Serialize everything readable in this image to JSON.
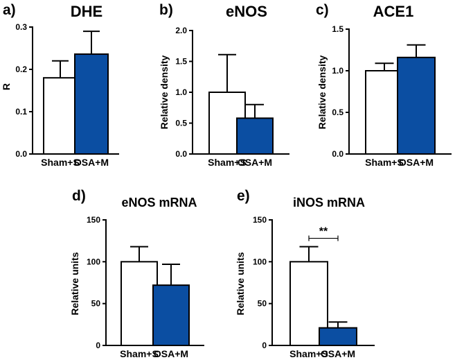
{
  "colors": {
    "filled": "#0b4ea2",
    "open": "#ffffff",
    "stroke": "#000000"
  },
  "chart_data": [
    {
      "type": "bar",
      "panel": "a)",
      "title": "DHE",
      "ylabel": "R",
      "categories": [
        "Sham+S",
        "OSA+M"
      ],
      "values": [
        0.18,
        0.236
      ],
      "errors": [
        0.04,
        0.054
      ],
      "fill": [
        "open",
        "filled"
      ],
      "ylim": [
        0,
        0.3
      ],
      "yticks": [
        0.0,
        0.1,
        0.2,
        0.3
      ],
      "ytick_labels": [
        "0.0",
        "0.1",
        "0.2",
        "0.3"
      ]
    },
    {
      "type": "bar",
      "panel": "b)",
      "title": "eNOS",
      "ylabel": "Relative density",
      "categories": [
        "Sham+S",
        "OSA+M"
      ],
      "values": [
        1.0,
        0.58
      ],
      "errors": [
        0.61,
        0.22
      ],
      "fill": [
        "open",
        "filled"
      ],
      "ylim": [
        0,
        2.0
      ],
      "yticks": [
        0.0,
        0.5,
        1.0,
        1.5,
        2.0
      ],
      "ytick_labels": [
        "0.0",
        "0.5",
        "1.0",
        "1.5",
        "2.0"
      ]
    },
    {
      "type": "bar",
      "panel": "c)",
      "title": "ACE1",
      "ylabel": "Relative density",
      "categories": [
        "Sham+S",
        "OSA+M"
      ],
      "values": [
        1.0,
        1.16
      ],
      "errors": [
        0.09,
        0.15
      ],
      "fill": [
        "open",
        "filled"
      ],
      "ylim": [
        0,
        1.5
      ],
      "yticks": [
        0.0,
        0.5,
        1.0,
        1.5
      ],
      "ytick_labels": [
        "0.0",
        "0.5",
        "1.0",
        "1.5"
      ]
    },
    {
      "type": "bar",
      "panel": "d)",
      "title": "eNOS mRNA",
      "ylabel": "Relative units",
      "categories": [
        "Sham+S",
        "OSA+M"
      ],
      "values": [
        100,
        72
      ],
      "errors": [
        18,
        25
      ],
      "fill": [
        "open",
        "filled"
      ],
      "ylim": [
        0,
        150
      ],
      "yticks": [
        0,
        50,
        100,
        150
      ],
      "ytick_labels": [
        "0",
        "50",
        "100",
        "150"
      ]
    },
    {
      "type": "bar",
      "panel": "e)",
      "title": "iNOS mRNA",
      "ylabel": "Relative units",
      "categories": [
        "Sham+S",
        "OSA+M"
      ],
      "values": [
        100,
        21
      ],
      "errors": [
        18,
        7
      ],
      "fill": [
        "open",
        "filled"
      ],
      "ylim": [
        0,
        150
      ],
      "yticks": [
        0,
        50,
        100,
        150
      ],
      "ytick_labels": [
        "0",
        "50",
        "100",
        "150"
      ],
      "significance": {
        "label": "**",
        "between": [
          0,
          1
        ],
        "y": 128
      }
    }
  ]
}
